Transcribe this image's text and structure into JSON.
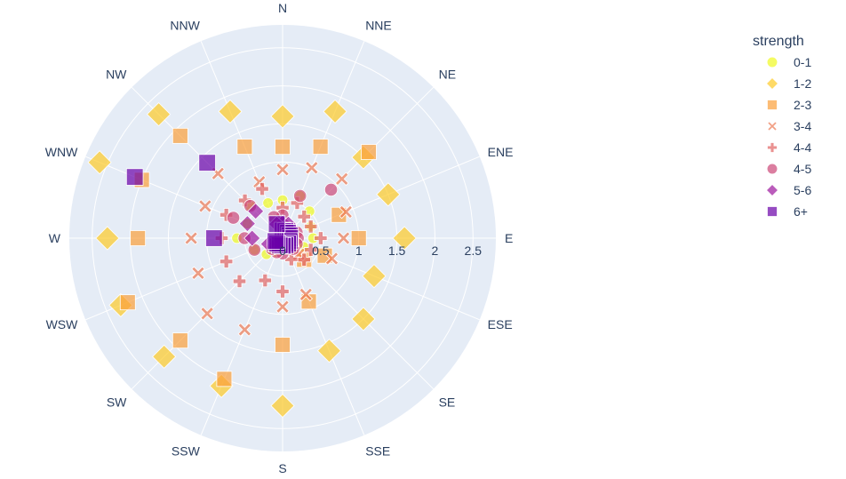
{
  "chart_data": {
    "type": "scatter",
    "subtype": "polar",
    "title": "",
    "directions": [
      "N",
      "NNE",
      "NE",
      "ENE",
      "E",
      "ESE",
      "SE",
      "SSE",
      "S",
      "SSW",
      "SW",
      "WSW",
      "W",
      "WNW",
      "NW",
      "NNW"
    ],
    "radial_ticks": [
      "0",
      "0.5",
      "1",
      "1.5",
      "2",
      "2.5"
    ],
    "radial_range": [
      0,
      2.8
    ],
    "angular_rotation": "clockwise, N at top",
    "grid": true,
    "background": "#e5ecf6",
    "legend": {
      "title": "strength",
      "placement": "right"
    },
    "series": [
      {
        "name": "0-1",
        "symbol": "circle",
        "color": "#f0f921",
        "size": 13,
        "r": [
          0.5,
          0.6,
          0.5,
          0.4,
          0.4,
          0.3,
          0.2,
          0.1,
          0.1,
          0.2,
          0.3,
          0.4,
          0.6,
          0.5,
          0.6,
          0.5
        ]
      },
      {
        "name": "1-2",
        "symbol": "diamond",
        "color": "#fdca26",
        "size": 26,
        "r": [
          1.6,
          1.8,
          1.5,
          1.5,
          1.6,
          1.3,
          1.5,
          1.6,
          2.2,
          2.1,
          2.2,
          2.3,
          2.3,
          2.6,
          2.3,
          1.8
        ]
      },
      {
        "name": "2-3",
        "symbol": "square",
        "color": "#fb9f3a",
        "size": 20,
        "r": [
          1.2,
          1.3,
          1.6,
          0.8,
          1.0,
          0.6,
          0.4,
          0.9,
          1.4,
          2.0,
          1.9,
          2.2,
          1.9,
          2.0,
          1.9,
          1.3
        ]
      },
      {
        "name": "3-4",
        "symbol": "x",
        "color": "#ed7953",
        "size": 18,
        "r": [
          0.9,
          1.0,
          1.1,
          0.9,
          0.8,
          0.7,
          0.3,
          0.8,
          0.9,
          1.3,
          1.4,
          1.2,
          1.2,
          1.1,
          1.2,
          0.8
        ]
      },
      {
        "name": "4-4",
        "symbol": "cross",
        "color": "#e16462",
        "size": 17,
        "r": [
          0.4,
          0.5,
          0.4,
          0.4,
          0.5,
          0.4,
          0.4,
          0.3,
          0.7,
          0.6,
          0.8,
          0.8,
          0.8,
          0.8,
          0.7,
          0.7
        ]
      },
      {
        "name": "4-5",
        "symbol": "circle",
        "color": "#cc4778",
        "size": 16,
        "r": [
          0.3,
          0.6,
          0.9,
          0.2,
          0.2,
          0.2,
          0.2,
          0.1,
          0.2,
          0.2,
          0.2,
          0.4,
          0.5,
          0.7,
          0.6,
          0.3
        ]
      },
      {
        "name": "5-6",
        "symbol": "diamond",
        "color": "#9c179e",
        "size": 18,
        "r": [
          0.2,
          0.2,
          0.1,
          0.1,
          0.1,
          0.1,
          0.1,
          0.1,
          0.1,
          0.1,
          0.1,
          0.2,
          0.4,
          0.5,
          0.5,
          0.2
        ]
      },
      {
        "name": "6+",
        "symbol": "square",
        "color": "#6a00a8",
        "size": 22,
        "r": [
          0.1,
          0.1,
          0.1,
          0.1,
          0.1,
          0.1,
          0.1,
          0.1,
          0.1,
          0.1,
          0.1,
          0.1,
          0.9,
          2.1,
          1.4,
          0.2
        ]
      }
    ]
  }
}
